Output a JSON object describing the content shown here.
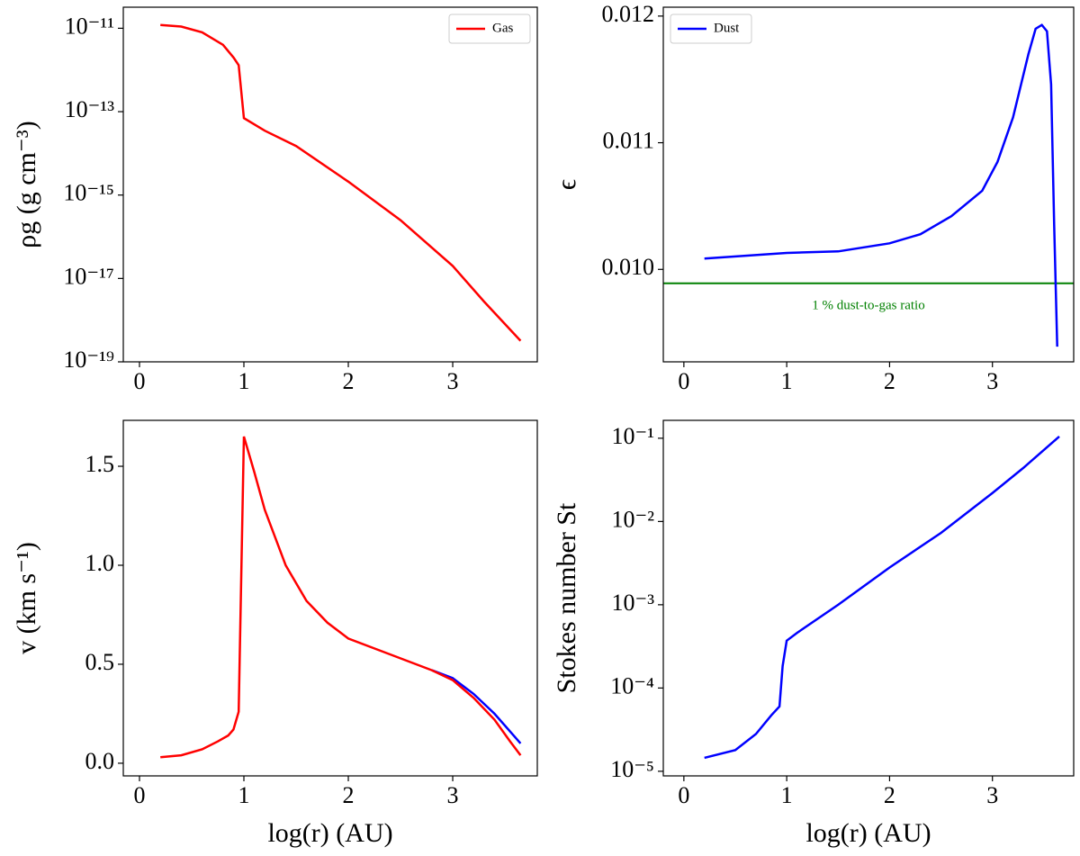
{
  "chart_data": [
    {
      "type": "line",
      "ylabel": "ρg (g cm⁻³)",
      "ylog": true,
      "xlim": [
        -0.155,
        3.81
      ],
      "xticks": [
        0,
        1,
        2,
        3
      ],
      "ylim": [
        1e-19,
        3.2e-11
      ],
      "yticks": [
        {
          "value": 1e-11,
          "label": "10⁻¹¹"
        },
        {
          "value": 1e-13,
          "label": "10⁻¹³"
        },
        {
          "value": 1e-15,
          "label": "10⁻¹⁵"
        },
        {
          "value": 1e-17,
          "label": "10⁻¹⁷"
        },
        {
          "value": 1e-19,
          "label": "10⁻¹⁹"
        }
      ],
      "legend": "upper right",
      "series": [
        {
          "name": "Gas",
          "color": "#ff0000",
          "x": [
            0.2,
            0.4,
            0.6,
            0.8,
            0.9,
            0.95,
            1.0,
            1.2,
            1.5,
            2.0,
            2.5,
            3.0,
            3.3,
            3.65
          ],
          "values": [
            1.2e-11,
            1.1e-11,
            8e-12,
            4e-12,
            2e-12,
            1.3e-12,
            7e-14,
            3.5e-14,
            1.5e-14,
            2.1e-15,
            2.5e-16,
            2e-17,
            2.8e-18,
            3.2e-19
          ]
        }
      ]
    },
    {
      "type": "line",
      "ylabel": "ϵ",
      "ylog": false,
      "xlim": [
        -0.2,
        3.79
      ],
      "xticks": [
        0,
        1,
        2,
        3
      ],
      "ylim": [
        0.00927,
        0.01207
      ],
      "yticks": [
        {
          "value": 0.01,
          "label": "0.010"
        },
        0.011,
        {
          "value": 0.012,
          "label": "0.012"
        }
      ],
      "legend": "upper left",
      "hline": {
        "value": 0.00989,
        "color": "#008000"
      },
      "annotation": "1 % dust-to-gas ratio",
      "series": [
        {
          "name": "Dust",
          "color": "#0000ff",
          "x": [
            0.2,
            1.0,
            1.5,
            2.0,
            2.3,
            2.6,
            2.9,
            3.05,
            3.2,
            3.35,
            3.42,
            3.48,
            3.53,
            3.57,
            3.6,
            3.63
          ],
          "values": [
            0.010085,
            0.01013,
            0.010142,
            0.010206,
            0.010278,
            0.01042,
            0.01062,
            0.01085,
            0.0112,
            0.0117,
            0.0119,
            0.01193,
            0.01188,
            0.01146,
            0.01035,
            0.00939
          ]
        }
      ]
    },
    {
      "type": "line",
      "ylabel": "v (km s⁻¹)",
      "xlabel": "log(r) (AU)",
      "ylog": false,
      "xlim": [
        -0.155,
        3.81
      ],
      "xticks": [
        0,
        1,
        2,
        3
      ],
      "ylim": [
        -0.064,
        1.732
      ],
      "yticks": [
        {
          "value": 0,
          "label": "0.0"
        },
        0.5,
        {
          "value": 1,
          "label": "1.0"
        },
        1.5
      ],
      "series": [
        {
          "color": "#0000ff",
          "x": [
            2.8,
            3.0,
            3.2,
            3.4,
            3.55,
            3.65
          ],
          "values": [
            0.47,
            0.43,
            0.35,
            0.25,
            0.16,
            0.1
          ]
        },
        {
          "color": "#ff0000",
          "x": [
            0.2,
            0.4,
            0.6,
            0.75,
            0.85,
            0.9,
            0.95,
            1.0,
            1.1,
            1.2,
            1.4,
            1.6,
            1.8,
            2.0,
            2.4,
            2.8,
            3.0,
            3.2,
            3.4,
            3.55,
            3.65
          ],
          "values": [
            0.03,
            0.04,
            0.07,
            0.11,
            0.14,
            0.17,
            0.26,
            1.65,
            1.47,
            1.28,
            1.0,
            0.82,
            0.71,
            0.63,
            0.55,
            0.47,
            0.42,
            0.33,
            0.22,
            0.11,
            0.04
          ]
        }
      ]
    },
    {
      "type": "line",
      "ylabel": "Stokes number St",
      "xlabel": "log(r) (AU)",
      "ylog": true,
      "xlim": [
        -0.2,
        3.79
      ],
      "xticks": [
        0,
        1,
        2,
        3
      ],
      "ylim": [
        8.8e-06,
        0.164
      ],
      "yticks": [
        {
          "value": 0.1,
          "label": "10⁻¹"
        },
        {
          "value": 0.01,
          "label": "10⁻²"
        },
        {
          "value": 0.001,
          "label": "10⁻³"
        },
        {
          "value": 0.0001,
          "label": "10⁻⁴"
        },
        {
          "value": 1e-05,
          "label": "10⁻⁵"
        }
      ],
      "series": [
        {
          "color": "#0000ff",
          "x": [
            0.2,
            0.5,
            0.7,
            0.85,
            0.93,
            0.96,
            1.0,
            1.1,
            1.5,
            2.0,
            2.5,
            3.0,
            3.3,
            3.65
          ],
          "values": [
            1.45e-05,
            1.8e-05,
            2.8e-05,
            4.7e-05,
            6e-05,
            0.000184,
            0.00037,
            0.00046,
            0.001,
            0.0028,
            0.0073,
            0.022,
            0.044,
            0.105
          ]
        }
      ]
    }
  ]
}
